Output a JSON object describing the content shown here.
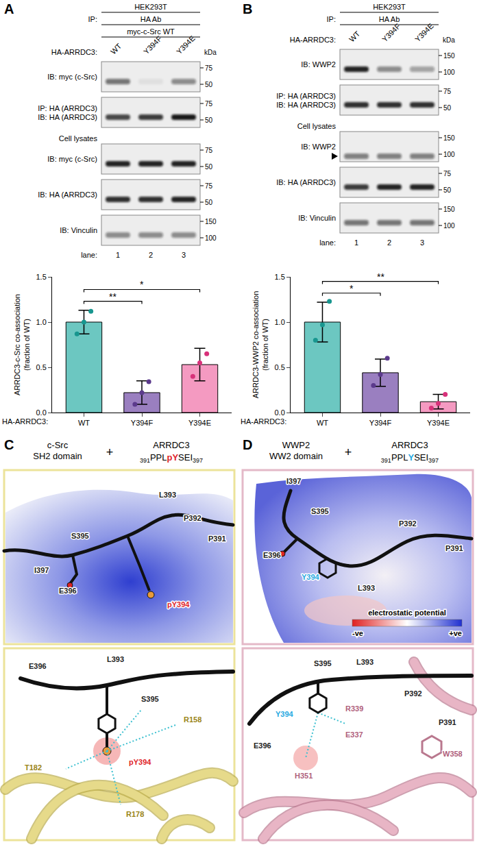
{
  "panels": [
    {
      "letter": "A",
      "header": {
        "cell_line": "HEK293T",
        "ip_label": "IP:",
        "ip": "HA Ab",
        "cotransfected": "myc-c-Src WT",
        "lane_title": "HA-ARRDC3:",
        "lanes": [
          "WT",
          "Y394F",
          "Y394E"
        ],
        "size_unit": "kDa"
      },
      "blots": [
        {
          "label": [
            "IB: myc (c-Src)"
          ],
          "markers": [
            75,
            50
          ],
          "bands": [
            0.55,
            0.06,
            0.45
          ]
        },
        {
          "label": [
            "IP: HA (ARRDC3)",
            "IB: HA (ARRDC3)"
          ],
          "markers": [
            75,
            50
          ],
          "bands": [
            0.75,
            0.8,
            0.95
          ]
        },
        {
          "section": "Cell lysates",
          "label": [
            "IB: myc (c-Src)"
          ],
          "markers": [
            75,
            50
          ],
          "bands": [
            0.9,
            0.9,
            0.9
          ]
        },
        {
          "label": [
            "IB: HA (ARRDC3)"
          ],
          "markers": [
            75,
            50
          ],
          "bands": [
            0.85,
            0.85,
            0.9
          ]
        },
        {
          "label": [
            "IB: Vinculin"
          ],
          "markers": [
            150,
            100
          ],
          "bands": [
            0.45,
            0.45,
            0.45
          ]
        }
      ],
      "lane_label": "lane:",
      "lane_numbers": [
        1,
        2,
        3
      ]
    },
    {
      "letter": "B",
      "header": {
        "cell_line": "HEK293T",
        "ip_label": "IP:",
        "ip": "HA Ab",
        "lane_title": "HA-ARRDC3:",
        "lanes": [
          "WT",
          "Y394F",
          "Y394E"
        ],
        "size_unit": "kDa"
      },
      "blots": [
        {
          "label": [
            "IB: WWP2"
          ],
          "markers": [
            150,
            100
          ],
          "bands": [
            0.9,
            0.45,
            0.35
          ]
        },
        {
          "label": [
            "IP: HA (ARRDC3)",
            "IB: HA (ARRDC3)"
          ],
          "markers": [
            75,
            50
          ],
          "bands": [
            0.85,
            0.85,
            0.85
          ]
        },
        {
          "section": "Cell lysates",
          "label": [
            "IB: WWP2"
          ],
          "markers": [
            150,
            100
          ],
          "bands": [
            0.5,
            0.5,
            0.5
          ],
          "arrow": true
        },
        {
          "label": [
            "IB: HA (ARRDC3)"
          ],
          "markers": [
            75,
            50
          ],
          "bands": [
            0.8,
            0.9,
            0.9
          ]
        },
        {
          "label": [
            "IB: Vinculin"
          ],
          "markers": [
            150,
            100
          ],
          "bands": [
            0.55,
            0.55,
            0.55
          ]
        }
      ],
      "lane_label": "lane:",
      "lane_numbers": [
        1,
        2,
        3
      ]
    }
  ],
  "chart_data": [
    {
      "type": "bar",
      "categories": [
        "WT",
        "Y394F",
        "Y394E"
      ],
      "values": [
        1.0,
        0.22,
        0.53
      ],
      "error": [
        0.13,
        0.13,
        0.18
      ],
      "points": [
        [
          0.87,
          1.0,
          1.12
        ],
        [
          0.09,
          0.22,
          0.34
        ],
        [
          0.4,
          0.55,
          0.65
        ]
      ],
      "colors": [
        "#6cc7c1",
        "#9a7fc0",
        "#f49ac1"
      ],
      "point_colors": [
        "#18968f",
        "#5b3a8c",
        "#d8317a"
      ],
      "ylabel": "ARRDC3-c-Src co-association (fraction of WT)",
      "xlabel": "HA-ARRDC3:",
      "ylim": [
        0,
        1.5
      ],
      "yticks": [
        {
          "value": 0,
          "label": "0.0"
        },
        {
          "value": 0.5,
          "label": "0.5"
        },
        {
          "value": 1,
          "label": "1.0"
        },
        {
          "value": 1.5,
          "label": "1.5"
        }
      ],
      "grid": false,
      "significance": [
        {
          "from": "WT",
          "to": "Y394F",
          "label": "**"
        },
        {
          "from": "WT",
          "to": "Y394E",
          "label": "*"
        }
      ]
    },
    {
      "type": "bar",
      "categories": [
        "WT",
        "Y394F",
        "Y394E"
      ],
      "values": [
        1.0,
        0.44,
        0.12
      ],
      "error": [
        0.22,
        0.15,
        0.08
      ],
      "points": [
        [
          0.8,
          0.97,
          1.23
        ],
        [
          0.3,
          0.42,
          0.6
        ],
        [
          0.05,
          0.1,
          0.2
        ]
      ],
      "colors": [
        "#6cc7c1",
        "#9a7fc0",
        "#f49ac1"
      ],
      "point_colors": [
        "#18968f",
        "#5b3a8c",
        "#d8317a"
      ],
      "ylabel": "ARRDC3-WWP2 co-association (fraction of WT)",
      "xlabel": "HA-ARRDC3:",
      "ylim": [
        0,
        1.5
      ],
      "yticks": [
        {
          "value": 0,
          "label": "0.0"
        },
        {
          "value": 0.5,
          "label": "0.5"
        },
        {
          "value": 1,
          "label": "1.0"
        },
        {
          "value": 1.5,
          "label": "1.5"
        }
      ],
      "grid": false,
      "significance": [
        {
          "from": "WT",
          "to": "Y394F",
          "label": "*"
        },
        {
          "from": "WT",
          "to": "Y394E",
          "label": "**"
        }
      ]
    }
  ],
  "structures": [
    {
      "letter": "C",
      "domain": "c-Src",
      "domain_sub": "SH2 domain",
      "plus": "+",
      "peptide": {
        "protein": "ARRDC3",
        "start": "391",
        "parts": [
          "PPL",
          "pY",
          "SEI"
        ],
        "highlight": "pY",
        "highlight_color": "#e0242a",
        "end": "397"
      },
      "top_labels": [
        {
          "text": "I397",
          "kind": "peptide"
        },
        {
          "text": "L393",
          "kind": "peptide"
        },
        {
          "text": "P392",
          "kind": "peptide"
        },
        {
          "text": "P391",
          "kind": "peptide"
        },
        {
          "text": "S395",
          "kind": "peptide"
        },
        {
          "text": "E396",
          "kind": "peptide"
        },
        {
          "text": "pY394",
          "kind": "highlight"
        }
      ],
      "bottom_labels": [
        {
          "text": "E396",
          "kind": "peptide"
        },
        {
          "text": "L393",
          "kind": "peptide"
        },
        {
          "text": "S395",
          "kind": "peptide"
        },
        {
          "text": "R158",
          "kind": "domain"
        },
        {
          "text": "T182",
          "kind": "domain"
        },
        {
          "text": "pY394",
          "kind": "highlight"
        },
        {
          "text": "R178",
          "kind": "domain"
        }
      ]
    },
    {
      "letter": "D",
      "domain": "WWP2",
      "domain_sub": "WW2 domain",
      "plus": "+",
      "peptide": {
        "protein": "ARRDC3",
        "start": "391",
        "parts": [
          "PPL",
          "Y",
          "SEI"
        ],
        "highlight": "Y",
        "highlight_color": "#27a9e1",
        "end": "397"
      },
      "top_labels": [
        {
          "text": "I397",
          "kind": "peptide"
        },
        {
          "text": "S395",
          "kind": "peptide"
        },
        {
          "text": "P392",
          "kind": "peptide"
        },
        {
          "text": "E396",
          "kind": "peptide"
        },
        {
          "text": "Y394",
          "kind": "highlight"
        },
        {
          "text": "P391",
          "kind": "peptide"
        },
        {
          "text": "L393",
          "kind": "peptide"
        }
      ],
      "colorbar": {
        "title": "electrostatic potential",
        "min_label": "-ve",
        "max_label": "+ve"
      },
      "bottom_labels": [
        {
          "text": "S395",
          "kind": "peptide"
        },
        {
          "text": "L393",
          "kind": "peptide"
        },
        {
          "text": "Y394",
          "kind": "highlight"
        },
        {
          "text": "E396",
          "kind": "peptide"
        },
        {
          "text": "R339",
          "kind": "domain"
        },
        {
          "text": "P392",
          "kind": "peptide"
        },
        {
          "text": "E337",
          "kind": "domain"
        },
        {
          "text": "P391",
          "kind": "peptide"
        },
        {
          "text": "H351",
          "kind": "domain"
        },
        {
          "text": "W358",
          "kind": "domain"
        }
      ]
    }
  ]
}
